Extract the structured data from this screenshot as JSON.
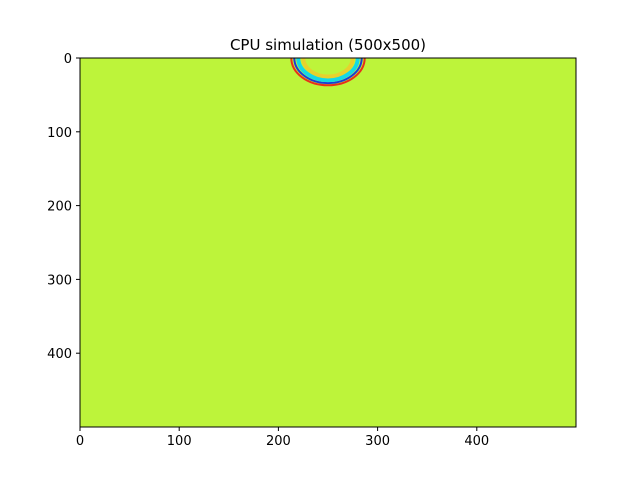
{
  "chart_data": {
    "type": "heatmap",
    "title": "CPU simulation (500x500)",
    "xlabel": "",
    "ylabel": "",
    "grid_size": [
      500,
      500
    ],
    "xlim": [
      0,
      500
    ],
    "ylim": [
      500,
      0
    ],
    "x_ticks": [
      0,
      100,
      200,
      300,
      400
    ],
    "y_ticks": [
      0,
      100,
      200,
      300,
      400
    ],
    "grid": false,
    "colormap": "jet",
    "background_color": "#bdf43a",
    "wave": {
      "center": [
        250,
        0
      ],
      "rings": [
        {
          "radius": 37,
          "color": "#e8301a",
          "width": 2
        },
        {
          "radius": 34,
          "color": "#1b3bd6",
          "width": 2
        },
        {
          "radius": 30,
          "color": "#14d8e6",
          "width": 4
        },
        {
          "radius": 25,
          "color": "#e7d12e",
          "width": 4
        }
      ]
    }
  }
}
